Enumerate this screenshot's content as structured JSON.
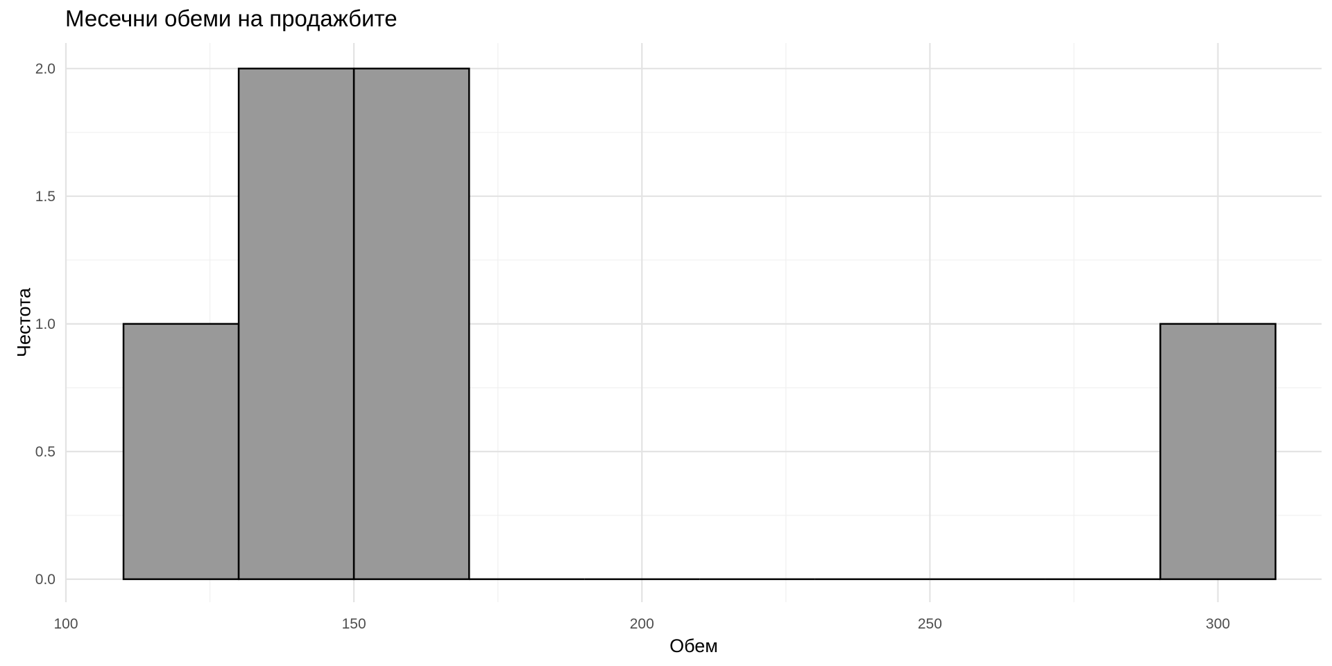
{
  "chart_data": {
    "type": "bar",
    "title": "Месечни обеми на продажбите",
    "xlabel": "Обем",
    "ylabel": "Честота",
    "bins": [
      {
        "x0": 110,
        "x1": 130,
        "count": 1
      },
      {
        "x0": 130,
        "x1": 150,
        "count": 2
      },
      {
        "x0": 150,
        "x1": 170,
        "count": 2
      },
      {
        "x0": 170,
        "x1": 190,
        "count": 0
      },
      {
        "x0": 190,
        "x1": 210,
        "count": 0
      },
      {
        "x0": 210,
        "x1": 230,
        "count": 0
      },
      {
        "x0": 230,
        "x1": 250,
        "count": 0
      },
      {
        "x0": 250,
        "x1": 270,
        "count": 0
      },
      {
        "x0": 270,
        "x1": 290,
        "count": 0
      },
      {
        "x0": 290,
        "x1": 310,
        "count": 1
      }
    ],
    "xlim": [
      100,
      318
    ],
    "ylim": [
      -0.09,
      2.1
    ],
    "x_ticks": [
      100,
      150,
      200,
      250,
      300
    ],
    "x_tick_labels": [
      "100",
      "150",
      "200",
      "250",
      "300"
    ],
    "y_ticks": [
      0,
      0.5,
      1,
      1.5,
      2
    ],
    "y_tick_labels": [
      "0.0",
      "0.5",
      "1.0",
      "1.5",
      "2.0"
    ],
    "grid": true,
    "legend": "none",
    "colors": {
      "bar_fill": "#999999",
      "bar_stroke": "#000000",
      "grid_major": "#e3e3e3",
      "grid_minor": "#f0f0f0"
    }
  }
}
